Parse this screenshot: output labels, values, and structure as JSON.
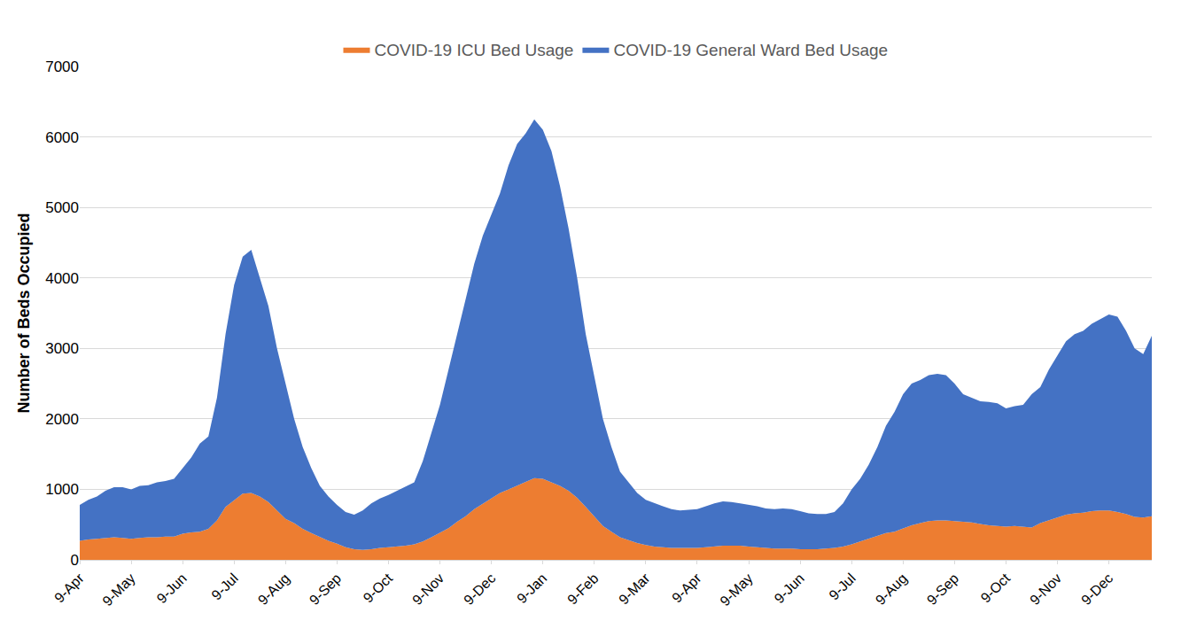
{
  "chart_data": {
    "type": "area",
    "stacked": true,
    "y_label": "Number of Beds Occupied",
    "ylim": [
      0,
      7000
    ],
    "yticks": [
      0,
      1000,
      2000,
      3000,
      4000,
      5000,
      6000,
      7000
    ],
    "grid": true,
    "legend": "top",
    "categories": [
      "9-Apr",
      null,
      null,
      null,
      null,
      null,
      "9-May",
      null,
      null,
      null,
      null,
      null,
      "9-Jun",
      null,
      null,
      null,
      null,
      null,
      "9-Jul",
      null,
      null,
      null,
      null,
      null,
      "9-Aug",
      null,
      null,
      null,
      null,
      null,
      "9-Sep",
      null,
      null,
      null,
      null,
      null,
      "9-Oct",
      null,
      null,
      null,
      null,
      null,
      "9-Nov",
      null,
      null,
      null,
      null,
      null,
      "9-Dec",
      null,
      null,
      null,
      null,
      null,
      "9-Jan",
      null,
      null,
      null,
      null,
      null,
      "9-Feb",
      null,
      null,
      null,
      null,
      null,
      "9-Mar",
      null,
      null,
      null,
      null,
      null,
      "9-Apr",
      null,
      null,
      null,
      null,
      null,
      "9-May",
      null,
      null,
      null,
      null,
      null,
      "9-Jun",
      null,
      null,
      null,
      null,
      null,
      "9-Jul",
      null,
      null,
      null,
      null,
      null,
      "9-Aug",
      null,
      null,
      null,
      null,
      null,
      "9-Sep",
      null,
      null,
      null,
      null,
      null,
      "9-Oct",
      null,
      null,
      null,
      null,
      null,
      "9-Nov",
      null,
      null,
      null,
      null,
      null,
      "9-Dec",
      null,
      null,
      null,
      null,
      null
    ],
    "series": [
      {
        "name": "COVID-19 ICU Bed Usage",
        "color": "#ed7d31",
        "values": [
          270,
          290,
          300,
          310,
          320,
          310,
          300,
          310,
          320,
          320,
          330,
          330,
          370,
          390,
          400,
          440,
          560,
          750,
          850,
          940,
          950,
          900,
          820,
          700,
          580,
          520,
          440,
          380,
          320,
          270,
          230,
          180,
          150,
          140,
          150,
          170,
          180,
          190,
          200,
          220,
          260,
          320,
          380,
          450,
          540,
          620,
          720,
          800,
          880,
          950,
          1000,
          1050,
          1100,
          1160,
          1150,
          1100,
          1050,
          980,
          880,
          750,
          620,
          480,
          400,
          320,
          280,
          240,
          210,
          190,
          180,
          170,
          170,
          170,
          170,
          180,
          190,
          200,
          200,
          200,
          190,
          180,
          170,
          160,
          160,
          160,
          150,
          150,
          150,
          160,
          170,
          190,
          220,
          260,
          300,
          340,
          380,
          400,
          450,
          490,
          520,
          550,
          560,
          560,
          550,
          540,
          530,
          510,
          490,
          480,
          470,
          480,
          470,
          460,
          520,
          560,
          600,
          640,
          660,
          670,
          690,
          700,
          700,
          680,
          650,
          610,
          600,
          620
        ]
      },
      {
        "name": "COVID-19 General Ward Bed Usage",
        "color": "#4472c4",
        "values": [
          510,
          560,
          600,
          670,
          710,
          720,
          700,
          740,
          740,
          780,
          790,
          820,
          930,
          1060,
          1250,
          1310,
          1740,
          2450,
          3050,
          3360,
          3450,
          3100,
          2780,
          2300,
          1920,
          1480,
          1160,
          920,
          730,
          630,
          550,
          500,
          490,
          560,
          650,
          700,
          740,
          790,
          830,
          880,
          1140,
          1480,
          1820,
          2250,
          2660,
          3080,
          3480,
          3800,
          4020,
          4250,
          4600,
          4850,
          4950,
          5090,
          4950,
          4700,
          4250,
          3720,
          3120,
          2450,
          1980,
          1520,
          1200,
          930,
          820,
          710,
          640,
          610,
          580,
          550,
          530,
          540,
          550,
          580,
          610,
          630,
          620,
          600,
          590,
          580,
          560,
          560,
          570,
          560,
          540,
          510,
          500,
          490,
          510,
          610,
          780,
          890,
          1050,
          1260,
          1520,
          1700,
          1900,
          2010,
          2030,
          2070,
          2080,
          2060,
          1950,
          1810,
          1770,
          1740,
          1750,
          1740,
          1680,
          1700,
          1730,
          1890,
          1930,
          2140,
          2300,
          2460,
          2540,
          2580,
          2660,
          2720,
          2780,
          2770,
          2600,
          2390,
          2320,
          2560
        ]
      }
    ]
  }
}
